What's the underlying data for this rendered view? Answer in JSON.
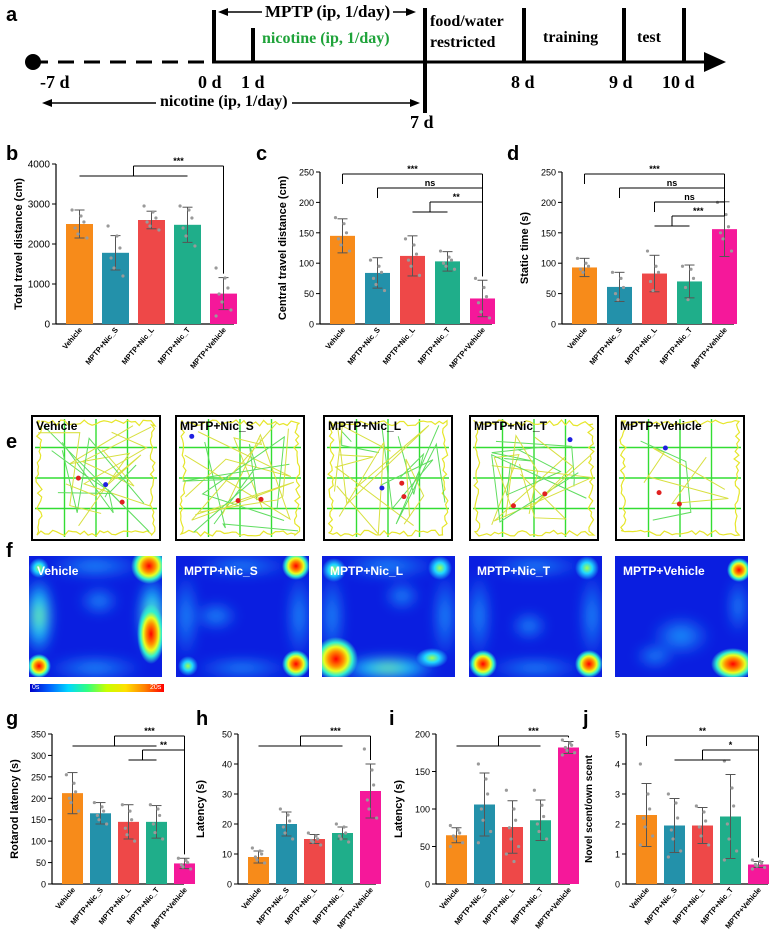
{
  "panel_letters": {
    "a": "a",
    "b": "b",
    "c": "c",
    "d": "d",
    "e": "e",
    "f": "f",
    "g": "g",
    "h": "h",
    "i": "i",
    "j": "j"
  },
  "timeline": {
    "mptp": "MPTP (ip, 1/day)",
    "nicotine_green": "nicotine (ip, 1/day)",
    "nicotine_pre": "nicotine (ip, 1/day)",
    "food_water_line1": "food/water",
    "food_water_line2": "restricted",
    "training": "training",
    "test": "test",
    "days": [
      "-7 d",
      "0 d",
      "1 d",
      "7 d",
      "8 d",
      "9 d",
      "10 d"
    ],
    "green_color": "#1fa33a"
  },
  "group_colors": [
    "#f78b1a",
    "#2391aa",
    "#ee4848",
    "#1fae8a",
    "#f5189a"
  ],
  "chart_data": [
    {
      "panel": "b",
      "type": "bar",
      "categories": [
        "Vehicle",
        "MPTP+Nic_S",
        "MPTP+Nic_L",
        "MPTP+Nic_T",
        "MPTP+Vehicle"
      ],
      "values": [
        2500,
        1780,
        2600,
        2480,
        760
      ],
      "errors": [
        350,
        430,
        220,
        440,
        400
      ],
      "points": [
        [
          2850,
          2700,
          2550,
          2400,
          2250,
          2150
        ],
        [
          2450,
          2200,
          1900,
          1650,
          1400,
          1200
        ],
        [
          2950,
          2800,
          2650,
          2550,
          2450,
          2350
        ],
        [
          2950,
          2850,
          2650,
          2400,
          2200,
          1950
        ],
        [
          1400,
          1150,
          900,
          750,
          550,
          350,
          200
        ]
      ],
      "ylabel": "Total travel distance (cm)",
      "ylim": [
        0,
        4000
      ],
      "yticks": [
        0,
        1000,
        2000,
        3000,
        4000
      ],
      "sig": [
        "***"
      ]
    },
    {
      "panel": "c",
      "type": "bar",
      "categories": [
        "Vehicle",
        "MPTP+Nic_S",
        "MPTP+Nic_L",
        "MPTP+Nic_T",
        "MPTP+Vehicle"
      ],
      "values": [
        145,
        84,
        112,
        103,
        42
      ],
      "errors": [
        28,
        25,
        33,
        16,
        30
      ],
      "points": [
        [
          175,
          165,
          150,
          140,
          130,
          120
        ],
        [
          105,
          95,
          85,
          75,
          65,
          55
        ],
        [
          140,
          130,
          115,
          105,
          95,
          80
        ],
        [
          120,
          110,
          105,
          100,
          95,
          90
        ],
        [
          75,
          60,
          45,
          35,
          20,
          10
        ]
      ],
      "ylabel": "Central travel distance (cm)",
      "ylim": [
        0,
        250
      ],
      "yticks": [
        0,
        50,
        100,
        150,
        200,
        250
      ],
      "sig": [
        "***",
        "ns",
        "**"
      ]
    },
    {
      "panel": "d",
      "type": "bar",
      "categories": [
        "Vehicle",
        "MPTP+Nic_S",
        "MPTP+Nic_L",
        "MPTP+Nic_T",
        "MPTP+Vehicle"
      ],
      "values": [
        93,
        61,
        83,
        70,
        156
      ],
      "errors": [
        15,
        24,
        30,
        27,
        45
      ],
      "points": [
        [
          108,
          100,
          95,
          90,
          85
        ],
        [
          85,
          75,
          60,
          50,
          40
        ],
        [
          120,
          95,
          85,
          70,
          55
        ],
        [
          95,
          90,
          75,
          60,
          40
        ],
        [
          200,
          180,
          160,
          150,
          140,
          120
        ]
      ],
      "ylabel": "Static time (s)",
      "ylim": [
        0,
        250
      ],
      "yticks": [
        0,
        50,
        100,
        150,
        200,
        250
      ],
      "sig": [
        "***",
        "ns",
        "ns",
        "***"
      ]
    },
    {
      "panel": "g",
      "type": "bar",
      "categories": [
        "Vehicle",
        "MPTP+Nic_S",
        "MPTP+Nic_L",
        "MPTP+Nic_T",
        "MPTP+Vehicle"
      ],
      "values": [
        212,
        165,
        145,
        145,
        48
      ],
      "errors": [
        48,
        25,
        40,
        38,
        12
      ],
      "points": [
        [
          255,
          235,
          215,
          200,
          190,
          170
        ],
        [
          190,
          180,
          170,
          160,
          150,
          140
        ],
        [
          185,
          170,
          150,
          130,
          115,
          100
        ],
        [
          185,
          175,
          160,
          140,
          120,
          105
        ],
        [
          60,
          55,
          50,
          45,
          40,
          35
        ]
      ],
      "ylabel": "Rotarod latency (s)",
      "ylim": [
        0,
        350
      ],
      "yticks": [
        0,
        50,
        100,
        150,
        200,
        250,
        300,
        350
      ],
      "sig": [
        "***",
        "**"
      ]
    },
    {
      "panel": "h",
      "type": "bar",
      "categories": [
        "Vehicle",
        "MPTP+Nic_S",
        "MPTP+Nic_L",
        "MPTP+Nic_T",
        "MPTP+Vehicle"
      ],
      "values": [
        9,
        20,
        15,
        17,
        31
      ],
      "errors": [
        2,
        4,
        1.5,
        2,
        9
      ],
      "points": [
        [
          12,
          11,
          10,
          9,
          8,
          7
        ],
        [
          25,
          23,
          21,
          19,
          17,
          15
        ],
        [
          17,
          16,
          15,
          14.5,
          14,
          13
        ],
        [
          20,
          19,
          17,
          16,
          15,
          14
        ],
        [
          45,
          38,
          33,
          28,
          25,
          22
        ]
      ],
      "ylabel": "Latency (s)",
      "ylim": [
        0,
        50
      ],
      "yticks": [
        0,
        10,
        20,
        30,
        40,
        50
      ],
      "sig": [
        "***"
      ]
    },
    {
      "panel": "i",
      "type": "bar",
      "categories": [
        "Vehicle",
        "MPTP+Nic_S",
        "MPTP+Nic_L",
        "MPTP+Nic_T",
        "MPTP+Vehicle"
      ],
      "values": [
        65,
        106,
        76,
        85,
        182
      ],
      "errors": [
        10,
        42,
        35,
        27,
        8
      ],
      "points": [
        [
          78,
          72,
          68,
          64,
          60,
          55,
          50
        ],
        [
          160,
          140,
          120,
          100,
          85,
          70,
          55
        ],
        [
          125,
          100,
          85,
          75,
          60,
          50,
          40,
          30
        ],
        [
          125,
          105,
          90,
          80,
          70,
          60
        ],
        [
          192,
          188,
          185,
          182,
          178,
          175,
          172
        ]
      ],
      "ylabel": "Latency (s)",
      "ylim": [
        0,
        200
      ],
      "yticks": [
        0,
        50,
        100,
        150,
        200
      ],
      "sig": [
        "***"
      ]
    },
    {
      "panel": "j",
      "type": "bar",
      "categories": [
        "Vehicle",
        "MPTP+Nic_S",
        "MPTP+Nic_L",
        "MPTP+Nic_T",
        "MPTP+Vehicle"
      ],
      "values": [
        2.3,
        1.95,
        1.95,
        2.25,
        0.65
      ],
      "errors": [
        1.05,
        0.9,
        0.6,
        1.4,
        0.1
      ],
      "points": [
        [
          4.0,
          3.0,
          2.5,
          2.2,
          1.9,
          1.6,
          1.3
        ],
        [
          3.0,
          2.7,
          2.2,
          1.8,
          1.5,
          1.1,
          0.9
        ],
        [
          2.6,
          2.4,
          2.1,
          1.9,
          1.6,
          1.3
        ],
        [
          4.1,
          3.2,
          2.6,
          2.0,
          1.5,
          1.1,
          0.8
        ],
        [
          0.8,
          0.75,
          0.7,
          0.65,
          0.6,
          0.55,
          0.5
        ]
      ],
      "ylabel": "Novel scent/own scent",
      "ylim": [
        0,
        5
      ],
      "yticks": [
        0,
        1,
        2,
        3,
        4,
        5
      ],
      "sig": [
        "**",
        "*"
      ]
    }
  ],
  "track_labels": [
    "Vehicle",
    "MPTP+Nic_S",
    "MPTP+Nic_L",
    "MPTP+Nic_T",
    "MPTP+Vehicle"
  ],
  "heatmap_labels": [
    "Vehicle",
    "MPTP+Nic_S",
    "MPTP+Nic_L",
    "MPTP+Nic_T",
    "MPTP+Vehicle"
  ],
  "colorbar": {
    "min": "0s",
    "max": "20s"
  }
}
